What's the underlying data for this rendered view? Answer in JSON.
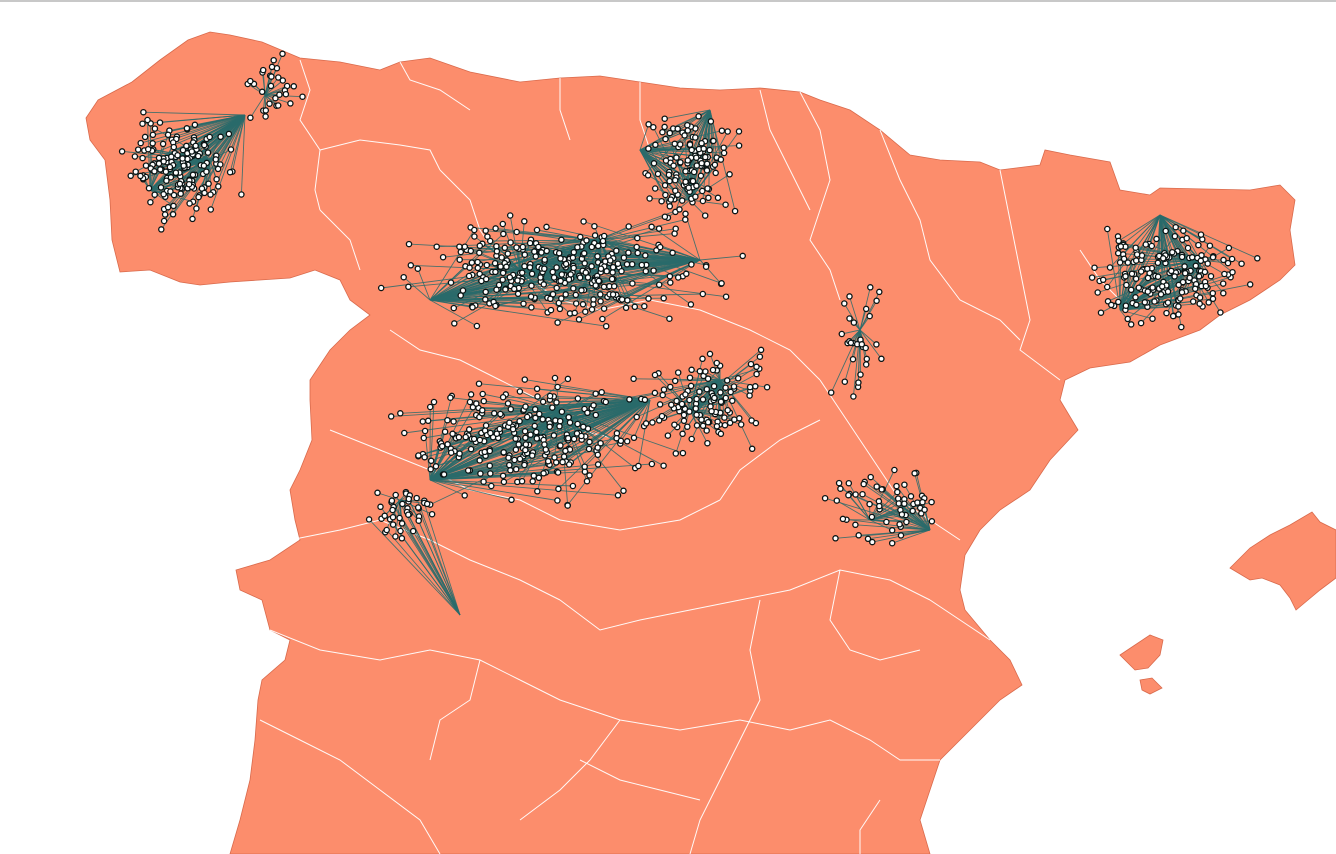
{
  "map": {
    "colors": {
      "land": "#fc8d6c",
      "land_stroke": "#d96a4c",
      "region_boundary": "#ffffff",
      "connector": "#2a6b6b",
      "point_fill": "#ffffff",
      "point_stroke": "#0a1414",
      "background": "#ffffff"
    },
    "layers": [
      "land-polygons",
      "region-boundaries",
      "point-connector-lines",
      "point-markers"
    ],
    "point_clusters": [
      {
        "name": "galicia",
        "count": 170
      },
      {
        "name": "asturias-west",
        "count": 30
      },
      {
        "name": "cantabria-basque",
        "count": 130
      },
      {
        "name": "castilla-leon-north",
        "count": 320
      },
      {
        "name": "castilla-leon-south",
        "count": 260
      },
      {
        "name": "madrid-toledo",
        "count": 120
      },
      {
        "name": "aragon-east",
        "count": 30
      },
      {
        "name": "catalonia",
        "count": 190
      },
      {
        "name": "valencia",
        "count": 60
      },
      {
        "name": "extremadura",
        "count": 40
      }
    ]
  }
}
